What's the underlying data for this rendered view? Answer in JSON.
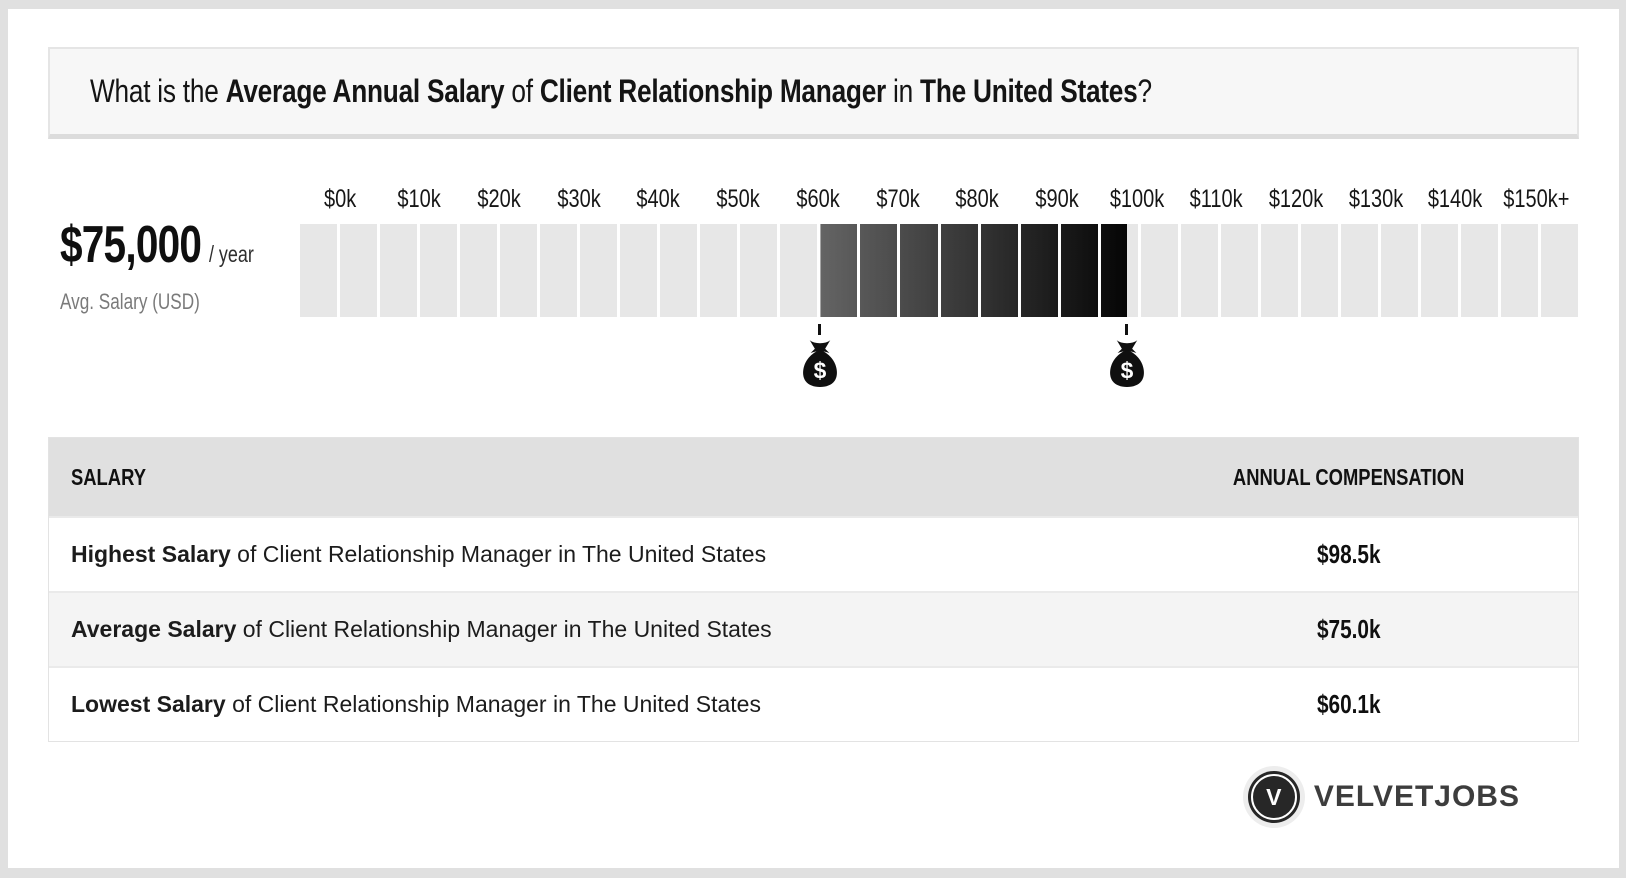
{
  "title": {
    "segments": [
      {
        "text": "What is the ",
        "bold": false
      },
      {
        "text": "Average Annual Salary",
        "bold": true
      },
      {
        "text": " of ",
        "bold": false
      },
      {
        "text": "Client Relationship Manager",
        "bold": true
      },
      {
        "text": " in ",
        "bold": false
      },
      {
        "text": "The United States",
        "bold": true
      },
      {
        "text": "?",
        "bold": false
      }
    ]
  },
  "summary": {
    "amount": "$75,000",
    "per": "/ year",
    "caption": "Avg. Salary (USD)"
  },
  "chart_data": {
    "type": "bar",
    "subtype": "segmented-range-gauge",
    "title": "Salary range of Client Relationship Manager in The United States (USD / year)",
    "axis": {
      "min": 0,
      "max": 160000,
      "tick_interval": 10000,
      "tick_labels": [
        "$0k",
        "$10k",
        "$20k",
        "$30k",
        "$40k",
        "$50k",
        "$60k",
        "$70k",
        "$80k",
        "$90k",
        "$100k",
        "$110k",
        "$120k",
        "$130k",
        "$140k",
        "$150k+"
      ]
    },
    "segments_total": 32,
    "highlight_range": {
      "low": 60100,
      "high": 98500,
      "low_label": "$60.1k",
      "high_label": "$98.5k"
    },
    "average": {
      "value": 75000,
      "label": "$75,000 / year"
    },
    "markers": [
      {
        "name": "lowest-salary-marker",
        "value": 60100
      },
      {
        "name": "highest-salary-marker",
        "value": 98500
      }
    ],
    "colors": {
      "track": "#e7e7e7",
      "range_start": "#646464",
      "range_end": "#050505",
      "marker": "#0f0f0f"
    }
  },
  "table": {
    "headers": [
      "SALARY",
      "ANNUAL COMPENSATION"
    ],
    "rows": [
      {
        "label_bold": "Highest Salary",
        "label_rest": " of Client Relationship Manager in The United States",
        "value": "$98.5k"
      },
      {
        "label_bold": "Average Salary",
        "label_rest": " of Client Relationship Manager in The United States",
        "value": "$75.0k"
      },
      {
        "label_bold": "Lowest Salary",
        "label_rest": " of Client Relationship Manager in The United States",
        "value": "$60.1k"
      }
    ]
  },
  "footer": {
    "brand": "VELVETJOBS",
    "logo_letter": "V"
  }
}
